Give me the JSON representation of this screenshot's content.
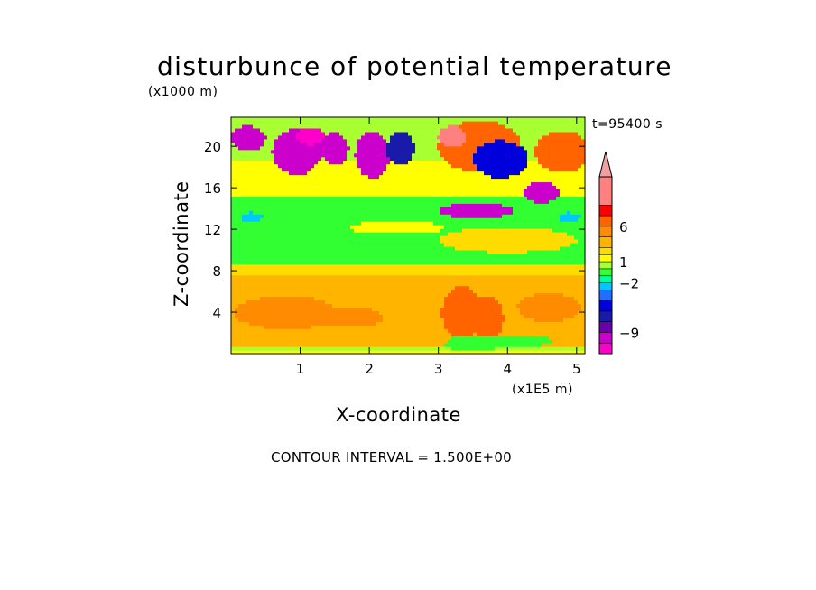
{
  "chart_data": {
    "type": "heatmap",
    "title": "disturbunce of potential temperature",
    "z_unit_label": "(x1000 m)",
    "x_unit_label": "(x1E5 m)",
    "xlabel": "X-coordinate",
    "ylabel": "Z-coordinate",
    "time_label": "t=95400 s",
    "contour_interval_label": "CONTOUR INTERVAL = 1.500E+00",
    "xlim": [
      0,
      5.12
    ],
    "ylim": [
      0,
      22.8
    ],
    "x_ticks": [
      1,
      2,
      3,
      4,
      5
    ],
    "x_tick_labels": [
      "1",
      "2",
      "3",
      "4",
      "5"
    ],
    "y_ticks": [
      4,
      8,
      12,
      16,
      20
    ],
    "y_tick_labels": [
      "4",
      "8",
      "12",
      "16",
      "20"
    ],
    "colorbar": {
      "levels": [
        -12,
        -10.5,
        -9,
        -7.5,
        -6,
        -4.5,
        -3,
        -2,
        -1,
        0,
        1,
        2,
        3,
        4.5,
        6,
        7.5,
        9,
        13
      ],
      "colors": [
        "#ff00cc",
        "#cc00cc",
        "#6a00aa",
        "#1a1aaa",
        "#0000dd",
        "#1f6fff",
        "#00c8ff",
        "#00ff9a",
        "#32ff32",
        "#a8ff32",
        "#ffff00",
        "#ffdc00",
        "#ffb400",
        "#ff8c00",
        "#ff6400",
        "#ff0000",
        "#ff8080",
        "#f0a0a0"
      ],
      "tick_values": [
        6,
        1,
        -2,
        -9
      ],
      "tick_labels": [
        "6",
        "1",
        "−2",
        "−9"
      ]
    },
    "field_features": [
      {
        "type": "base",
        "value": 1
      },
      {
        "type": "band",
        "z": [
          0.2,
          0.8
        ],
        "value": 0
      },
      {
        "type": "band",
        "z": [
          0.8,
          7.6
        ],
        "value": 3
      },
      {
        "type": "band",
        "z": [
          7.6,
          8.8
        ],
        "value": 2
      },
      {
        "type": "band",
        "z": [
          8.8,
          15.2
        ],
        "value": -1
      },
      {
        "type": "band",
        "z": [
          15.2,
          18.5
        ],
        "value": 1
      },
      {
        "type": "band",
        "z": [
          18.5,
          22.8
        ],
        "value": 0
      },
      {
        "type": "blob",
        "x": 0.8,
        "z": 4.0,
        "rx": 0.75,
        "rz": 1.6,
        "value": 4.5
      },
      {
        "type": "blob",
        "x": 1.7,
        "z": 3.6,
        "rx": 0.5,
        "rz": 1.0,
        "value": 4.5
      },
      {
        "type": "blob",
        "x": 4.6,
        "z": 4.5,
        "rx": 0.45,
        "rz": 1.4,
        "value": 4.5
      },
      {
        "type": "blob",
        "x": 2.4,
        "z": 12.2,
        "rx": 0.7,
        "rz": 0.6,
        "value": 1
      },
      {
        "type": "blob",
        "x": 4.0,
        "z": 11.0,
        "rx": 1.0,
        "rz": 1.2,
        "value": 2
      },
      {
        "type": "blob",
        "x": 0.3,
        "z": 13.2,
        "rx": 0.15,
        "rz": 0.45,
        "value": -3
      },
      {
        "type": "blob",
        "x": 4.9,
        "z": 13.2,
        "rx": 0.15,
        "rz": 0.45,
        "value": -3
      },
      {
        "type": "blob",
        "x": 3.55,
        "z": 13.8,
        "rx": 0.55,
        "rz": 0.7,
        "value": -10.5
      },
      {
        "type": "blob",
        "x": 4.5,
        "z": 15.6,
        "rx": 0.25,
        "rz": 1.0,
        "value": -10.5
      },
      {
        "type": "blob",
        "x": 0.25,
        "z": 20.8,
        "rx": 0.25,
        "rz": 1.2,
        "value": -10.5
      },
      {
        "type": "blob",
        "x": 0.95,
        "z": 19.5,
        "rx": 0.35,
        "rz": 2.2,
        "value": -10.5
      },
      {
        "type": "blob",
        "x": 1.5,
        "z": 19.8,
        "rx": 0.2,
        "rz": 1.6,
        "value": -10.5
      },
      {
        "type": "blob",
        "x": 2.05,
        "z": 19.2,
        "rx": 0.25,
        "rz": 2.2,
        "value": -10.5
      },
      {
        "type": "blob",
        "x": 2.45,
        "z": 19.8,
        "rx": 0.2,
        "rz": 1.6,
        "value": -7.5
      },
      {
        "type": "blob",
        "x": 1.15,
        "z": 21.0,
        "rx": 0.2,
        "rz": 0.8,
        "value": -13
      },
      {
        "type": "blob",
        "x": 3.6,
        "z": 20.0,
        "rx": 0.6,
        "rz": 2.5,
        "value": 6
      },
      {
        "type": "blob",
        "x": 4.8,
        "z": 19.5,
        "rx": 0.4,
        "rz": 2.0,
        "value": 6
      },
      {
        "type": "blob",
        "x": 3.2,
        "z": 21.0,
        "rx": 0.2,
        "rz": 1.0,
        "value": 9
      },
      {
        "type": "blob",
        "x": 3.9,
        "z": 18.8,
        "rx": 0.4,
        "rz": 1.8,
        "value": -6
      },
      {
        "type": "blob",
        "x": 3.35,
        "z": 4.0,
        "rx": 0.3,
        "rz": 2.5,
        "value": 6
      },
      {
        "type": "blob",
        "x": 3.7,
        "z": 3.5,
        "rx": 0.25,
        "rz": 2.0,
        "value": 6
      },
      {
        "type": "blob",
        "x": 3.5,
        "z": 1.0,
        "rx": 0.4,
        "rz": 0.8,
        "value": -1
      },
      {
        "type": "blob",
        "x": 4.2,
        "z": 1.3,
        "rx": 0.45,
        "rz": 0.6,
        "value": -1
      }
    ]
  }
}
